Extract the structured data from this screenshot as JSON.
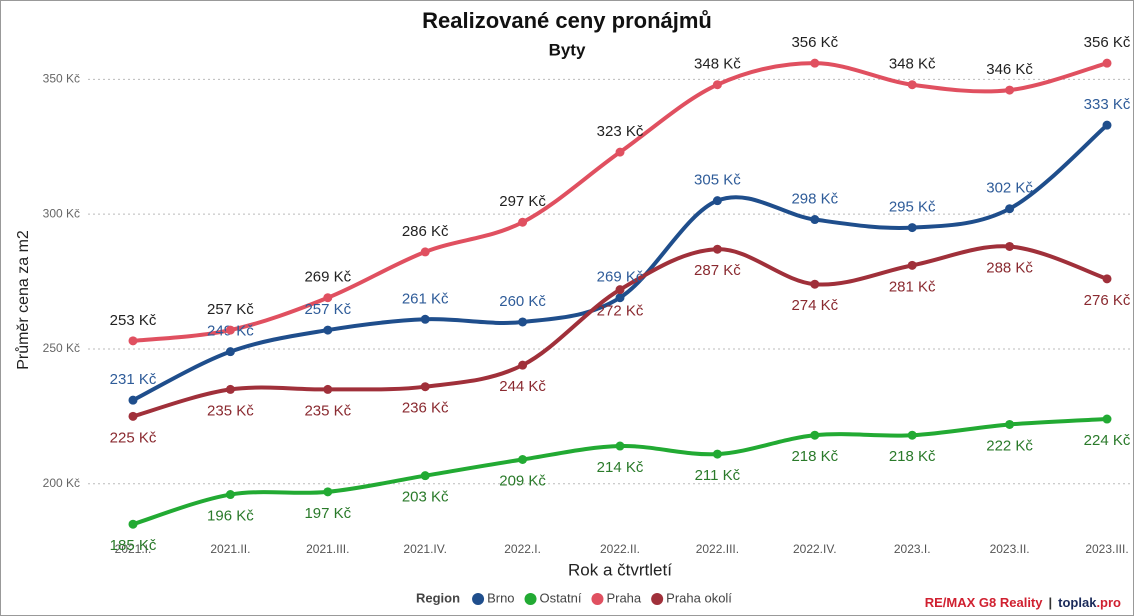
{
  "chart_data": {
    "type": "line",
    "title": "Realizované ceny pronájmů",
    "subtitle": "Byty",
    "x_label": "Rok a čtvrtletí",
    "y_label": "Průměr cena za m2",
    "categories": [
      "2021.I.",
      "2021.II.",
      "2021.III.",
      "2021.IV.",
      "2022.I.",
      "2022.II.",
      "2022.III.",
      "2022.IV.",
      "2023.I.",
      "2023.II.",
      "2023.III."
    ],
    "ylim": [
      181,
      372
    ],
    "yticks": [
      {
        "value": 200,
        "label": "200 Kč"
      },
      {
        "value": 250,
        "label": "250 Kč"
      },
      {
        "value": 300,
        "label": "300 Kč"
      },
      {
        "value": 350,
        "label": "350 Kč"
      }
    ],
    "grid": true,
    "legend_title": "Region",
    "legend_position": "bottom",
    "series": [
      {
        "name": "Brno",
        "color": "#1f4e8c",
        "label_color": "#2f5c99",
        "label_side": "above",
        "values": [
          231,
          249,
          257,
          261,
          260,
          269,
          305,
          298,
          295,
          302,
          333
        ],
        "value_labels": [
          "231 Kč",
          "249 Kč",
          "257 Kč",
          "261 Kč",
          "260 Kč",
          "269 Kč",
          "305 Kč",
          "298 Kč",
          "295 Kč",
          "302 Kč",
          "333 Kč"
        ]
      },
      {
        "name": "Ostatní",
        "color": "#22aa33",
        "label_color": "#2a7a2a",
        "label_side": "below",
        "values": [
          185,
          196,
          197,
          203,
          209,
          214,
          211,
          218,
          218,
          222,
          224
        ],
        "value_labels": [
          "185 Kč",
          "196 Kč",
          "197 Kč",
          "203 Kč",
          "209 Kč",
          "214 Kč",
          "211 Kč",
          "218 Kč",
          "218 Kč",
          "222 Kč",
          "224 Kč"
        ]
      },
      {
        "name": "Praha",
        "color": "#e05060",
        "label_color": "#222222",
        "label_side": "above",
        "values": [
          253,
          257,
          269,
          286,
          297,
          323,
          348,
          356,
          348,
          346,
          356
        ],
        "value_labels": [
          "253 Kč",
          "257 Kč",
          "269 Kč",
          "286 Kč",
          "297 Kč",
          "323 Kč",
          "348 Kč",
          "356 Kč",
          "348 Kč",
          "346 Kč",
          "356 Kč"
        ]
      },
      {
        "name": "Praha okolí",
        "color": "#a0303a",
        "label_color": "#8a2a30",
        "label_side": "below",
        "values": [
          225,
          235,
          235,
          236,
          244,
          272,
          287,
          274,
          281,
          288,
          276
        ],
        "value_labels": [
          "225 Kč",
          "235 Kč",
          "235 Kč",
          "236 Kč",
          "244 Kč",
          "272 Kč",
          "287 Kč",
          "274 Kč",
          "281 Kč",
          "288 Kč",
          "276 Kč"
        ]
      }
    ],
    "footer": {
      "brand": "RE/MAX G8 Reality",
      "separator": "|",
      "site": "toplak",
      "site_suffix": ".pro"
    }
  }
}
